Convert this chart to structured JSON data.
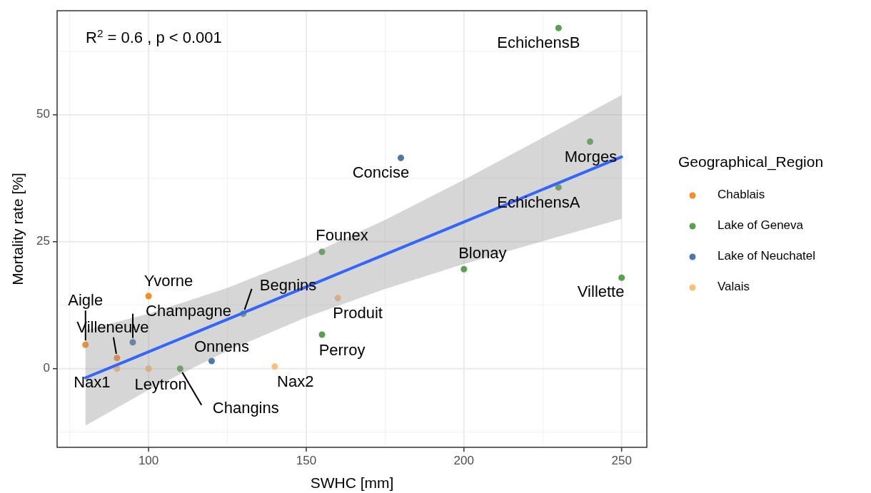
{
  "chart_data": {
    "type": "scatter",
    "xlabel": "SWHC [mm]",
    "ylabel": "Mortality rate [%]",
    "legend_title": "Geographical_Region",
    "legend": "right",
    "grid": true,
    "marker": "circle",
    "xlim": [
      71,
      258
    ],
    "ylim": [
      -15.5,
      70.5
    ],
    "xticks": [
      100,
      150,
      200,
      250
    ],
    "yticks": [
      0,
      25,
      50
    ],
    "series": [
      {
        "name": "Chablais",
        "color": "#f28e2b",
        "x": [
          80,
          90,
          100
        ],
        "values": [
          4.7,
          2.1,
          14.3
        ]
      },
      {
        "name": "Lake of Geneva",
        "color": "#59a14f",
        "x": [
          110,
          130,
          155,
          155,
          200,
          230,
          240,
          230,
          250
        ],
        "values": [
          0,
          10.8,
          23,
          6.7,
          19.6,
          35.7,
          44.7,
          67.1,
          17.9
        ]
      },
      {
        "name": "Lake of Neuchatel",
        "color": "#4e79a7",
        "x": [
          95,
          120,
          180
        ],
        "values": [
          5.2,
          1.5,
          41.5
        ]
      },
      {
        "name": "Valais",
        "color": "#ffbe7d",
        "x": [
          90,
          100,
          140,
          160
        ],
        "values": [
          0,
          0,
          0.4,
          13.9
        ]
      },
      {
        "type": "line",
        "marker": "none",
        "color": "#3366ff",
        "x": [
          80,
          100,
          125,
          150,
          175,
          200,
          225,
          250
        ],
        "values": [
          -1.8,
          3.3,
          9.7,
          16.1,
          22.5,
          28.9,
          35.3,
          41.7
        ],
        "lower": [
          -11.2,
          -4.2,
          3.5,
          10.1,
          15.7,
          20.6,
          25.1,
          29.5
        ],
        "upper": [
          7.6,
          10.8,
          15.9,
          22.1,
          29.3,
          37.2,
          45.5,
          53.9
        ]
      }
    ],
    "annotations": [
      "R$^{2}$ = 0.6 , p < 0.001",
      {
        "text": "Aigle",
        "x": 80,
        "y": 4.7
      },
      {
        "text": "Villeneuve",
        "x": 90,
        "y": 2.1
      },
      {
        "text": "Nax1",
        "x": 90,
        "y": 0
      },
      {
        "text": "Yvorne",
        "x": 100,
        "y": 14.3
      },
      {
        "text": "Leytron",
        "x": 100,
        "y": 0
      },
      {
        "text": "Champagne",
        "x": 95,
        "y": 5.2
      },
      {
        "text": "Changins",
        "x": 110,
        "y": 0
      },
      {
        "text": "Onnens",
        "x": 120,
        "y": 1.5
      },
      {
        "text": "Begnins",
        "x": 130,
        "y": 10.8
      },
      {
        "text": "Nax2",
        "x": 140,
        "y": 0.4
      },
      {
        "text": "Founex",
        "x": 155,
        "y": 23
      },
      {
        "text": "Produit",
        "x": 160,
        "y": 13.9
      },
      {
        "text": "Perroy",
        "x": 155,
        "y": 6.7
      },
      {
        "text": "Concise",
        "x": 180,
        "y": 41.5
      },
      {
        "text": "Blonay",
        "x": 200,
        "y": 19.6
      },
      {
        "text": "EchichensA",
        "x": 230,
        "y": 35.7
      },
      {
        "text": "Morges",
        "x": 240,
        "y": 44.7
      },
      {
        "text": "EchichensB",
        "x": 230,
        "y": 67.1
      },
      {
        "text": "Villette",
        "x": 250,
        "y": 17.9
      }
    ]
  }
}
